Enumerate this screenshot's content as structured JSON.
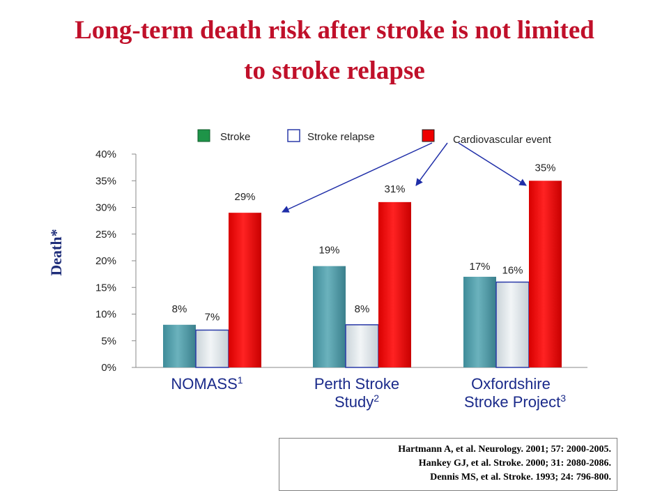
{
  "title": {
    "line1": "Long-term death risk after stroke is not limited",
    "line2": "to stroke relapse"
  },
  "chart_data": {
    "type": "bar",
    "ylabel": "Death*",
    "ylim": [
      0,
      40
    ],
    "yticks": [
      "0%",
      "5%",
      "10%",
      "15%",
      "20%",
      "25%",
      "30%",
      "35%",
      "40%"
    ],
    "categories": [
      {
        "line1": "NOMASS",
        "sup1": "1",
        "line2": "",
        "sup2": ""
      },
      {
        "line1": "Perth Stroke",
        "sup1": "",
        "line2": "Study",
        "sup2": "2"
      },
      {
        "line1": "Oxfordshire",
        "sup1": "",
        "line2": "Stroke Project",
        "sup2": "3"
      }
    ],
    "series": [
      {
        "name": "Stroke",
        "values": [
          8,
          19,
          17
        ],
        "labels": [
          "8%",
          "19%",
          "17%"
        ],
        "color": "#5aa1ad"
      },
      {
        "name": "Stroke relapse",
        "values": [
          7,
          8,
          16
        ],
        "labels": [
          "7%",
          "8%",
          "16%"
        ],
        "color": "#dfe6ea"
      },
      {
        "name": "Cardiovascular event",
        "values": [
          29,
          31,
          35
        ],
        "labels": [
          "29%",
          "31%",
          "35%"
        ],
        "color": "#ee0000"
      }
    ],
    "legend_position": "top",
    "legend_swatch_colors": [
      "#1e9448",
      "#ffffff",
      "#ee0000"
    ],
    "annotation": "arrows from 'Cardiovascular event' legend entry to each red bar"
  },
  "references": [
    "Hartmann A,  et al. Neurology. 2001; 57: 2000-2005.",
    "Hankey GJ,  et al. Stroke. 2000; 31: 2080-2086.",
    "Dennis MS,  et al. Stroke. 1993; 24: 796-800."
  ]
}
